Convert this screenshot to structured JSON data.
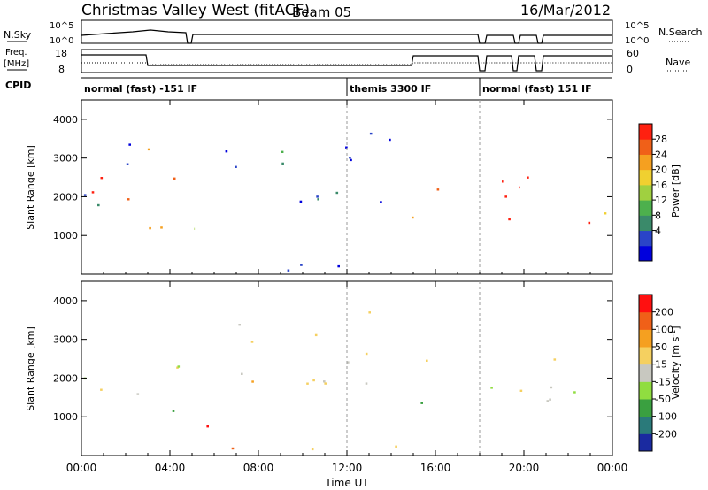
{
  "header": {
    "title": "Christmas Valley West (fitACF)",
    "beam": "Beam 05",
    "date": "16/Mar/2012"
  },
  "top_panels": {
    "nsky_label": "N.Sky",
    "nsky_ticks": [
      "10^5",
      "10^0"
    ],
    "nsearch_ticks": [
      "10^5",
      "10^0"
    ],
    "nsearch_label": "N.Search",
    "freq_label_line1": "Freq.",
    "freq_label_line2": "[MHz]",
    "freq_ticks": [
      "18",
      "8"
    ],
    "nave_ticks": [
      "60",
      "0"
    ],
    "nave_label": "Nave",
    "cpid_label": "CPID",
    "cpid_segments": [
      {
        "label": "normal (fast) -151 IF",
        "start_hour": 0,
        "end_hour": 12
      },
      {
        "label": "themis 3300 IF",
        "start_hour": 12,
        "end_hour": 18
      },
      {
        "label": "normal (fast) 151 IF",
        "start_hour": 18,
        "end_hour": 24
      }
    ]
  },
  "chart_data": [
    {
      "type": "heatmap",
      "name": "power-panel",
      "ylabel": "Slant Range [km]",
      "ylim": [
        0,
        4500
      ],
      "y_ticks": [
        "1000",
        "2000",
        "3000",
        "4000"
      ],
      "y_tick_values": [
        1000,
        2000,
        3000,
        4000
      ],
      "xlim_hours": [
        0,
        24
      ],
      "colorbar": {
        "label": "Power [dB]",
        "tick_labels": [
          "28",
          "24",
          "20",
          "16",
          "12",
          "8",
          "4"
        ],
        "colors": [
          "#0000dd",
          "#2a44c8",
          "#3a8a6a",
          "#4db04d",
          "#a0d040",
          "#f0d030",
          "#f5a020",
          "#f06018",
          "#ff2010"
        ]
      },
      "scatter_regions": [
        {
          "t0": 0.0,
          "t1": 3.0,
          "r0": 1600,
          "r1": 3300,
          "level": 0.85
        },
        {
          "t0": 0.0,
          "t1": 2.5,
          "r0": 1400,
          "r1": 3500,
          "level": 0.2
        },
        {
          "t0": 3.0,
          "t1": 5.0,
          "r0": 1000,
          "r1": 3000,
          "level": 0.9
        },
        {
          "t0": 5.0,
          "t1": 6.7,
          "r0": 700,
          "r1": 1800,
          "level": 0.5
        },
        {
          "t0": 6.5,
          "t1": 14.5,
          "r0": 1500,
          "r1": 3800,
          "level": 0.15
        },
        {
          "t0": 9.0,
          "t1": 11.0,
          "r0": 2900,
          "r1": 3600,
          "level": 0.4
        },
        {
          "t0": 14.8,
          "t1": 15.5,
          "r0": 1000,
          "r1": 2500,
          "level": 0.75
        },
        {
          "t0": 15.5,
          "t1": 21.0,
          "r0": 1200,
          "r1": 2600,
          "level": 0.95
        },
        {
          "t0": 21.0,
          "t1": 24.0,
          "r0": 1300,
          "r1": 2300,
          "level": 0.8
        },
        {
          "t0": 6.0,
          "t1": 16.0,
          "r0": 100,
          "r1": 500,
          "level": 0.1
        }
      ]
    },
    {
      "type": "heatmap",
      "name": "velocity-panel",
      "ylabel": "Slant Range [km]",
      "ylim": [
        0,
        4500
      ],
      "y_ticks": [
        "1000",
        "2000",
        "3000",
        "4000"
      ],
      "y_tick_values": [
        1000,
        2000,
        3000,
        4000
      ],
      "xlim_hours": [
        0,
        24
      ],
      "xlabel": "Time UT",
      "x_ticks": [
        "00:00",
        "04:00",
        "08:00",
        "12:00",
        "16:00",
        "20:00",
        "00:00"
      ],
      "x_tick_hours": [
        0,
        4,
        8,
        12,
        16,
        20,
        24
      ],
      "colorbar": {
        "label": "Velocity [m s^-1]",
        "tick_labels": [
          "200",
          "100",
          "50",
          "15",
          "-15",
          "-50",
          "-100",
          "-200"
        ],
        "colors": [
          "#1a2aa0",
          "#2a7a7a",
          "#3aa040",
          "#90dd40",
          "#c8c8c0",
          "#f5d060",
          "#f5a020",
          "#f06018",
          "#ff1010"
        ]
      },
      "scatter_regions": [
        {
          "t0": 0.0,
          "t1": 3.0,
          "r0": 1600,
          "r1": 3100,
          "level": 0.5
        },
        {
          "t0": 3.0,
          "t1": 5.0,
          "r0": 1100,
          "r1": 2900,
          "level": 0.5
        },
        {
          "t0": 5.0,
          "t1": 6.7,
          "r0": 700,
          "r1": 1700,
          "level": 0.98
        },
        {
          "t0": 6.5,
          "t1": 14.5,
          "r0": 1600,
          "r1": 3800,
          "level": 0.6
        },
        {
          "t0": 14.8,
          "t1": 15.5,
          "r0": 1000,
          "r1": 2500,
          "level": 0.2
        },
        {
          "t0": 15.5,
          "t1": 24.0,
          "r0": 1300,
          "r1": 2600,
          "level": 0.48
        },
        {
          "t0": 6.0,
          "t1": 16.0,
          "r0": 100,
          "r1": 500,
          "level": 0.65
        }
      ]
    }
  ]
}
